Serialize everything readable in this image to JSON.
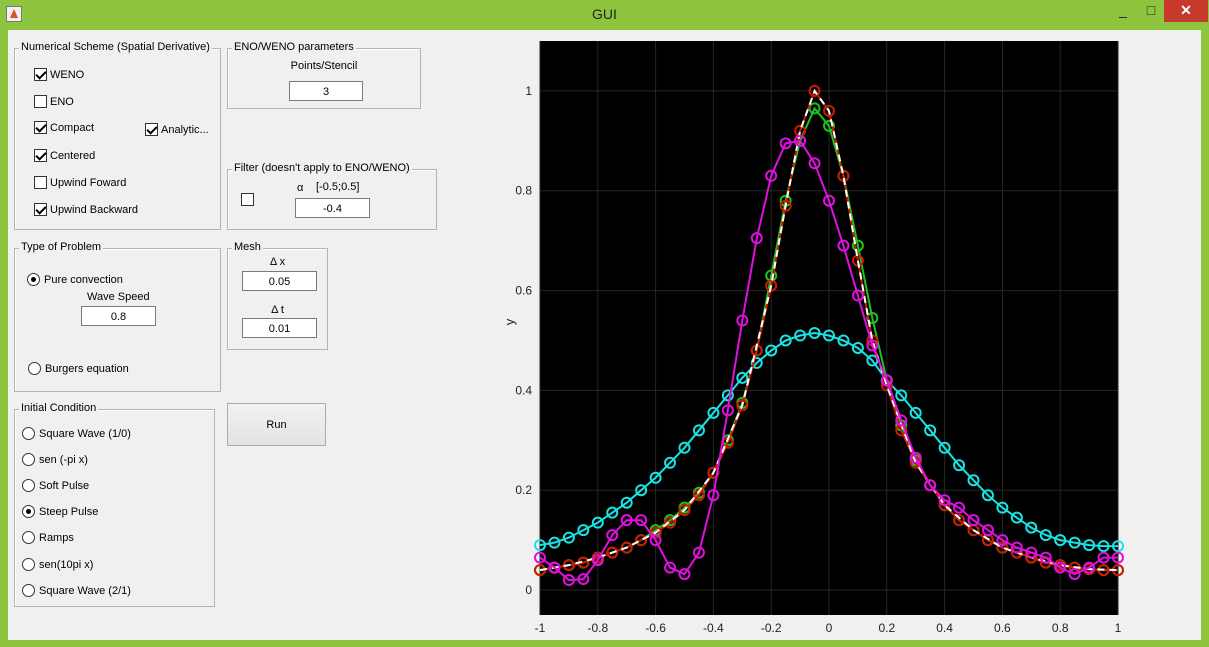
{
  "window": {
    "title": "GUI",
    "minimize": "_",
    "maximize": "□",
    "close": "✕"
  },
  "numerical_scheme": {
    "title": "Numerical Scheme (Spatial Derivative)",
    "weno": {
      "label": "WENO",
      "checked": true
    },
    "eno": {
      "label": "ENO",
      "checked": false
    },
    "compact": {
      "label": "Compact",
      "checked": true
    },
    "analytic": {
      "label": "Analytic...",
      "checked": true
    },
    "centered": {
      "label": "Centered",
      "checked": true
    },
    "upwind_forward": {
      "label": "Upwind Foward",
      "checked": false
    },
    "upwind_backward": {
      "label": "Upwind Backward",
      "checked": true
    }
  },
  "eno_weno": {
    "title": "ENO/WENO parameters",
    "points_label": "Points/Stencil",
    "points_value": "3"
  },
  "filter": {
    "title": "Filter (doesn't apply to ENO/WENO)",
    "alpha_symbol": "α",
    "alpha_range": "[-0.5;0.5]",
    "alpha_value": "-0.4",
    "enabled": false
  },
  "problem": {
    "title": "Type of Problem",
    "pure_convection": {
      "label": "Pure convection",
      "selected": true
    },
    "wave_speed_label": "Wave Speed",
    "wave_speed_value": "0.8",
    "burgers": {
      "label": "Burgers equation",
      "selected": false
    }
  },
  "mesh": {
    "title": "Mesh",
    "dx_label": "Δ x",
    "dx_value": "0.05",
    "dt_label": "Δ t",
    "dt_value": "0.01"
  },
  "initial_condition": {
    "title": "Initial Condition",
    "options": [
      {
        "label": "Square Wave (1/0)",
        "selected": false
      },
      {
        "label": "sen (-pi x)",
        "selected": false
      },
      {
        "label": "Soft Pulse",
        "selected": false
      },
      {
        "label": "Steep Pulse",
        "selected": true
      },
      {
        "label": "Ramps",
        "selected": false
      },
      {
        "label": "sen(10pi x)",
        "selected": false
      },
      {
        "label": "Square Wave (2/1)",
        "selected": false
      }
    ]
  },
  "run_label": "Run",
  "plot_colors": {
    "background": "#000000",
    "cyan": "#18e4e4",
    "magenta": "#e010e0",
    "red": "#cc1a00",
    "green": "#20c020",
    "dash_white": "#ffffff"
  },
  "chart_data": {
    "type": "line",
    "xlabel": "",
    "ylabel": "y",
    "xlim": [
      -1,
      1
    ],
    "ylim": [
      -0.05,
      1.1
    ],
    "xticks": [
      "-1",
      "-0.8",
      "-0.6",
      "-0.4",
      "-0.2",
      "0",
      "0.2",
      "0.4",
      "0.6",
      "0.8",
      "1"
    ],
    "yticks": [
      "0",
      "0.2",
      "0.4",
      "0.6",
      "0.8",
      "1"
    ],
    "grid": true,
    "series": [
      {
        "color": "#18e4e4",
        "marker": "circle",
        "line": "solid",
        "x": [
          -1,
          -0.95,
          -0.9,
          -0.85,
          -0.8,
          -0.75,
          -0.7,
          -0.65,
          -0.6,
          -0.55,
          -0.5,
          -0.45,
          -0.4,
          -0.35,
          -0.3,
          -0.25,
          -0.2,
          -0.15,
          -0.1,
          -0.05,
          0,
          0.05,
          0.1,
          0.15,
          0.2,
          0.25,
          0.3,
          0.35,
          0.4,
          0.45,
          0.5,
          0.55,
          0.6,
          0.65,
          0.7,
          0.75,
          0.8,
          0.85,
          0.9,
          0.95,
          1
        ],
        "y": [
          0.09,
          0.095,
          0.105,
          0.12,
          0.135,
          0.155,
          0.175,
          0.2,
          0.225,
          0.255,
          0.285,
          0.32,
          0.355,
          0.39,
          0.425,
          0.455,
          0.48,
          0.5,
          0.51,
          0.515,
          0.51,
          0.5,
          0.485,
          0.46,
          0.42,
          0.39,
          0.355,
          0.32,
          0.285,
          0.25,
          0.22,
          0.19,
          0.165,
          0.145,
          0.125,
          0.11,
          0.1,
          0.095,
          0.09,
          0.088,
          0.088
        ]
      },
      {
        "color": "#20c020",
        "marker": "circle",
        "line": "solid",
        "x": [
          -1,
          -0.95,
          -0.9,
          -0.85,
          -0.8,
          -0.75,
          -0.7,
          -0.65,
          -0.6,
          -0.55,
          -0.5,
          -0.45,
          -0.4,
          -0.35,
          -0.3,
          -0.25,
          -0.2,
          -0.15,
          -0.1,
          -0.05,
          0,
          0.05,
          0.1,
          0.15,
          0.2,
          0.25,
          0.3,
          0.35,
          0.4,
          0.45,
          0.5,
          0.55,
          0.6,
          0.65,
          0.7,
          0.75,
          0.8,
          0.85,
          0.9,
          0.95,
          1
        ],
        "y": [
          0.04,
          0.045,
          0.05,
          0.055,
          0.065,
          0.075,
          0.085,
          0.1,
          0.12,
          0.14,
          0.165,
          0.195,
          0.235,
          0.3,
          0.375,
          0.48,
          0.63,
          0.78,
          0.9,
          0.965,
          0.93,
          0.83,
          0.69,
          0.545,
          0.42,
          0.33,
          0.26,
          0.21,
          0.17,
          0.14,
          0.12,
          0.1,
          0.085,
          0.075,
          0.065,
          0.055,
          0.05,
          0.045,
          0.042,
          0.04,
          0.04
        ]
      },
      {
        "color": "#cc1a00",
        "marker": "circle",
        "line": "solid",
        "x": [
          -1,
          -0.95,
          -0.9,
          -0.85,
          -0.8,
          -0.75,
          -0.7,
          -0.65,
          -0.6,
          -0.55,
          -0.5,
          -0.45,
          -0.4,
          -0.35,
          -0.3,
          -0.25,
          -0.2,
          -0.15,
          -0.1,
          -0.05,
          0,
          0.05,
          0.1,
          0.15,
          0.2,
          0.25,
          0.3,
          0.35,
          0.4,
          0.45,
          0.5,
          0.55,
          0.6,
          0.65,
          0.7,
          0.75,
          0.8,
          0.85,
          0.9,
          0.95,
          1
        ],
        "y": [
          0.04,
          0.045,
          0.05,
          0.055,
          0.065,
          0.075,
          0.085,
          0.1,
          0.115,
          0.135,
          0.16,
          0.19,
          0.235,
          0.295,
          0.37,
          0.48,
          0.61,
          0.77,
          0.92,
          1.0,
          0.96,
          0.83,
          0.66,
          0.5,
          0.41,
          0.32,
          0.255,
          0.21,
          0.17,
          0.14,
          0.12,
          0.1,
          0.085,
          0.075,
          0.065,
          0.055,
          0.05,
          0.045,
          0.042,
          0.04,
          0.04
        ]
      },
      {
        "color": "#ffffff",
        "marker": "none",
        "line": "dashed",
        "x": [
          -1,
          -0.9,
          -0.8,
          -0.7,
          -0.6,
          -0.5,
          -0.4,
          -0.3,
          -0.2,
          -0.15,
          -0.1,
          -0.05,
          0,
          0.05,
          0.1,
          0.15,
          0.2,
          0.3,
          0.4,
          0.5,
          0.6,
          0.7,
          0.8,
          0.9,
          1
        ],
        "y": [
          0.04,
          0.05,
          0.065,
          0.085,
          0.115,
          0.16,
          0.235,
          0.37,
          0.61,
          0.77,
          0.92,
          1.0,
          0.96,
          0.83,
          0.66,
          0.5,
          0.41,
          0.255,
          0.17,
          0.12,
          0.085,
          0.065,
          0.05,
          0.042,
          0.04
        ]
      },
      {
        "color": "#e010e0",
        "marker": "circle",
        "line": "solid",
        "x": [
          -1,
          -0.95,
          -0.9,
          -0.85,
          -0.8,
          -0.75,
          -0.7,
          -0.65,
          -0.6,
          -0.55,
          -0.5,
          -0.45,
          -0.4,
          -0.35,
          -0.3,
          -0.25,
          -0.2,
          -0.15,
          -0.1,
          -0.05,
          0,
          0.05,
          0.1,
          0.15,
          0.2,
          0.25,
          0.3,
          0.35,
          0.4,
          0.45,
          0.5,
          0.55,
          0.6,
          0.65,
          0.7,
          0.75,
          0.8,
          0.85,
          0.9,
          0.95,
          1
        ],
        "y": [
          0.065,
          0.045,
          0.02,
          0.022,
          0.06,
          0.11,
          0.14,
          0.14,
          0.1,
          0.045,
          0.032,
          0.075,
          0.19,
          0.36,
          0.54,
          0.705,
          0.83,
          0.895,
          0.9,
          0.855,
          0.78,
          0.69,
          0.59,
          0.49,
          0.42,
          0.34,
          0.265,
          0.21,
          0.18,
          0.165,
          0.14,
          0.12,
          0.1,
          0.085,
          0.075,
          0.065,
          0.045,
          0.032,
          0.045,
          0.065,
          0.065
        ]
      }
    ]
  }
}
